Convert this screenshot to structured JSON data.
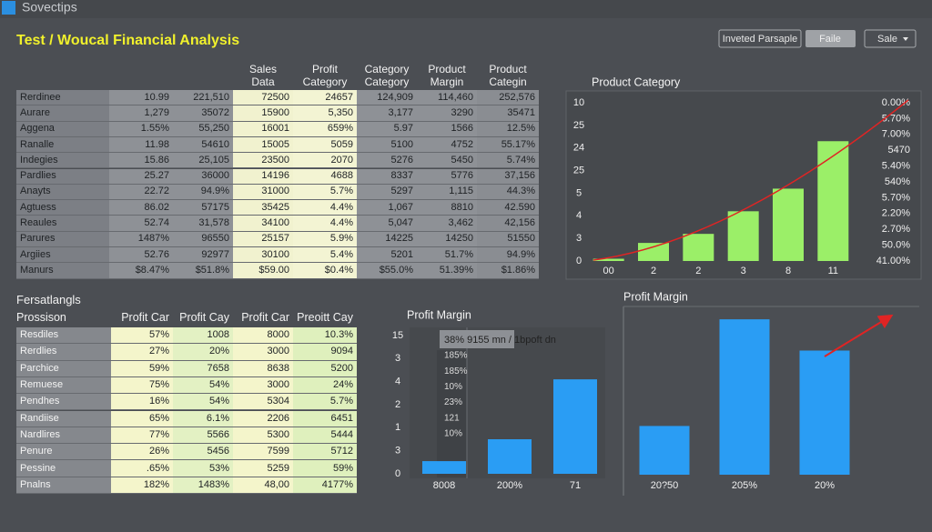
{
  "header": {
    "app_name": "Sovectips",
    "title": "Test / Woucal Financial Analysis"
  },
  "toolbar": {
    "buttons": [
      "Inveted Parsaple",
      "Faile",
      "Sale"
    ]
  },
  "table1": {
    "columns": [
      "Sales Data",
      "Profit Category",
      "Category Category",
      "Product Margin",
      "Product Categin"
    ],
    "rows": [
      [
        "Rerdinee",
        "10.99",
        "221,510",
        "72500",
        "24657",
        "124,909",
        "114,460",
        "252,576"
      ],
      [
        "Aurare",
        "1,279",
        "35072",
        "15900",
        "5,350",
        "3,177",
        "3290",
        "35471"
      ],
      [
        "Aggena",
        "1.55%",
        "55,250",
        "16001",
        "659%",
        "5.97",
        "1566",
        "12.5%"
      ],
      [
        "Ranalle",
        "11.98",
        "54610",
        "15005",
        "5059",
        "5100",
        "4752",
        "55.17%"
      ],
      [
        "Indegies",
        "15.86",
        "25,105",
        "23500",
        "2070",
        "5276",
        "5450",
        "5.74%"
      ],
      [
        "Pardlies",
        "25.27",
        "36000",
        "14196",
        "4688",
        "8337",
        "5776",
        "37,156"
      ],
      [
        "Anayts",
        "22.72",
        "94.9%",
        "31000",
        "5.7%",
        "5297",
        "1,115",
        "44.3%"
      ],
      [
        "Agtuess",
        "86.02",
        "57175",
        "35425",
        "4.4%",
        "1,067",
        "8810",
        "42.590"
      ],
      [
        "Reaules",
        "52.74",
        "31,578",
        "34100",
        "4.4%",
        "5,047",
        "3,462",
        "42,156"
      ],
      [
        "Parures",
        "1487%",
        "96550",
        "25157",
        "5.9%",
        "14225",
        "14250",
        "51550"
      ],
      [
        "Argiies",
        "52.76",
        "92977",
        "30100",
        "5.4%",
        "5201",
        "51.7%",
        "94.9%"
      ],
      [
        "Manurs",
        "$8.47%",
        "$51.8%",
        "$59.00",
        "$0.4%",
        "$55.0%",
        "51.39%",
        "$1.86%"
      ]
    ]
  },
  "table2": {
    "title": "Fersatlangls",
    "columns": [
      "Prossison",
      "Profit Car",
      "Profit Cay",
      "Profit Car",
      "Preoitt Cay"
    ],
    "rows": [
      [
        "Resdiles",
        "57%",
        "1008",
        "8000",
        "10.3%"
      ],
      [
        "Rerdlies",
        "27%",
        "20%",
        "3000",
        "9094"
      ],
      [
        "Parchice",
        "59%",
        "7658",
        "8638",
        "5200"
      ],
      [
        "Remuese",
        "75%",
        "54%",
        "3000",
        "24%"
      ],
      [
        "Pendhes",
        "16%",
        "54%",
        "5304",
        "5.7%"
      ],
      [
        "Randiise",
        "65%",
        "6.1%",
        "2206",
        "6451"
      ],
      [
        "Nardlires",
        "77%",
        "5566",
        "5300",
        "5444"
      ],
      [
        "Penure",
        "26%",
        "5456",
        "7599",
        "5712"
      ],
      [
        "Pessine",
        ".65%",
        "53%",
        "5259",
        "59%"
      ],
      [
        "Pnalns",
        "182%",
        "1483%",
        "48,00",
        "4177%"
      ]
    ]
  },
  "chart_data": [
    {
      "type": "bar",
      "title": "Product Category",
      "categories": [
        "00",
        "2",
        "2",
        "3",
        "8",
        "11"
      ],
      "values": [
        0.1,
        0.8,
        1.2,
        2.2,
        3.2,
        5.3
      ],
      "color": "#9bef68",
      "ylim": [
        0,
        7
      ],
      "yticks": [
        {
          "value": 7,
          "label": "10"
        },
        {
          "value": 6,
          "label": "25"
        },
        {
          "value": 5,
          "label": "24"
        },
        {
          "value": 4,
          "label": "25"
        },
        {
          "value": 3,
          "label": "5"
        },
        {
          "value": 2,
          "label": "4"
        },
        {
          "value": 1,
          "label": "3"
        },
        0
      ],
      "y2lim": [
        0,
        10
      ],
      "y2ticks": [
        {
          "value": 10,
          "label": "0.00%"
        },
        {
          "value": 9,
          "label": "5.70%"
        },
        {
          "value": 8,
          "label": "7.00%"
        },
        {
          "value": 7,
          "label": "5470"
        },
        {
          "value": 6,
          "label": "5.40%"
        },
        {
          "value": 5,
          "label": "540%"
        },
        {
          "value": 4,
          "label": "5.70%"
        },
        {
          "value": 3,
          "label": "2.20%"
        },
        {
          "value": 2,
          "label": "2.70%"
        },
        {
          "value": 1,
          "label": "50.0%"
        },
        {
          "value": 0,
          "label": "41.00%"
        }
      ]
    },
    {
      "type": "bar",
      "title": "Profit Margin",
      "categories": [
        "8008",
        "200%",
        "71"
      ],
      "values": [
        0.55,
        1.5,
        4.1
      ],
      "color": "#2a9df4",
      "ylim": [
        0,
        6
      ],
      "yticks": [
        {
          "value": 6,
          "label": "15"
        },
        {
          "value": 5,
          "label": "3"
        },
        4,
        {
          "value": 3,
          "label": "2"
        },
        {
          "value": 2,
          "label": "1"
        },
        {
          "value": 1,
          "label": "3"
        },
        0
      ],
      "tooltip": {
        "title": "38% 9155 mn / 1bpoft dn",
        "items": [
          "185%",
          "185%",
          "10%",
          "23%",
          "121",
          "10%"
        ]
      }
    },
    {
      "type": "bar",
      "title": "Profit Margin",
      "categories": [
        "20?50",
        "205%",
        "20%"
      ],
      "values": [
        53,
        169,
        135
      ],
      "color": "#2a9df4",
      "ylim": [
        0,
        180
      ]
    }
  ]
}
